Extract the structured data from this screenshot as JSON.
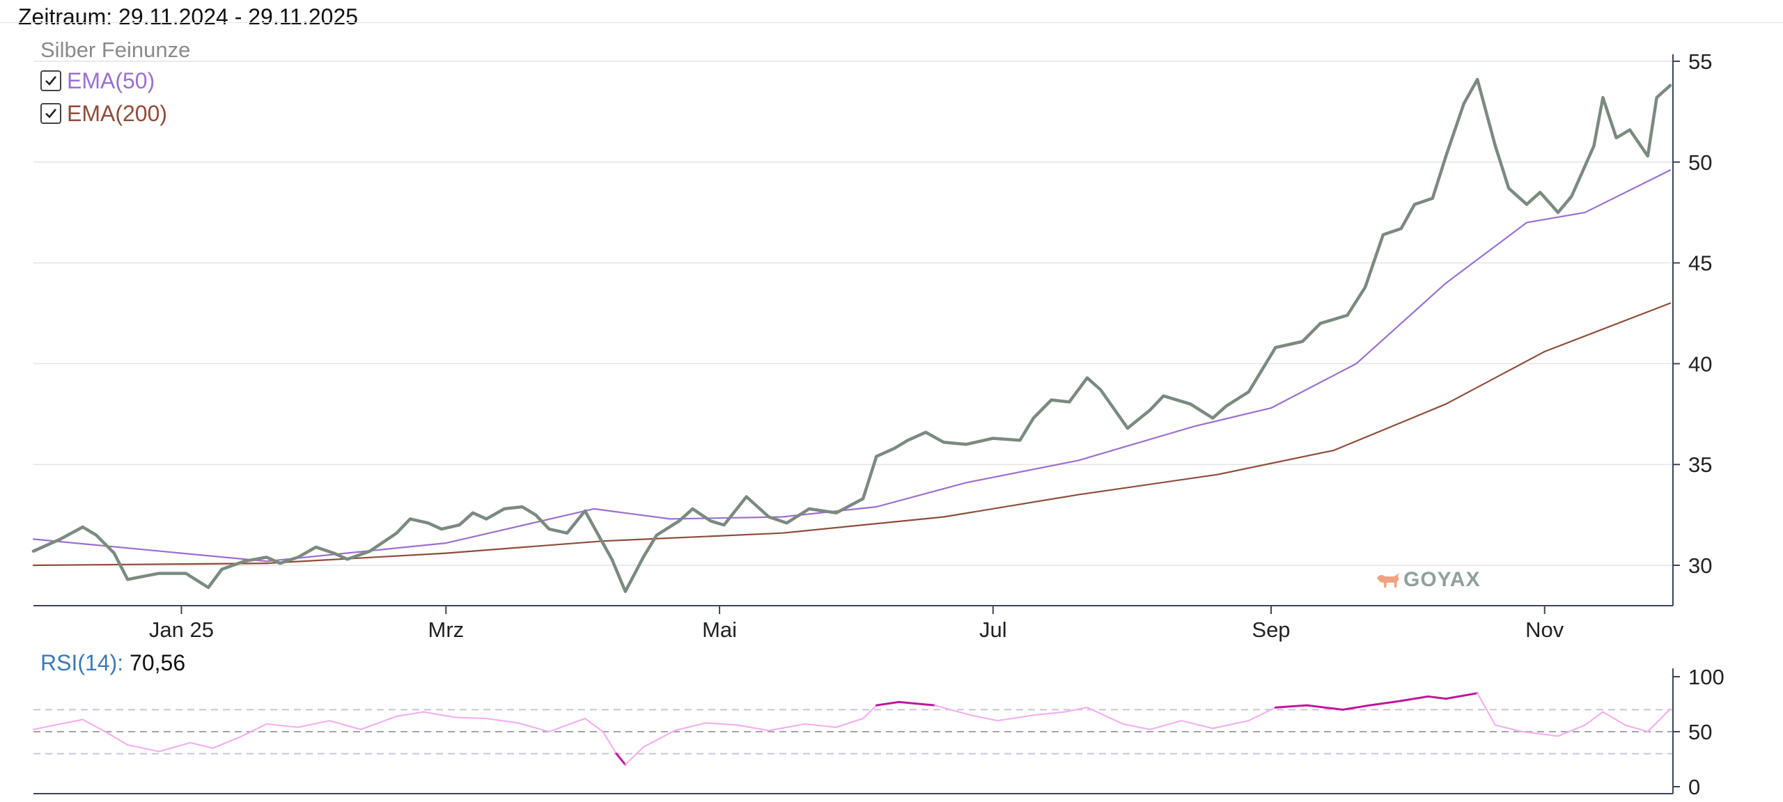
{
  "header": {
    "period_label": "Zeitraum: 29.11.2024 - 29.11.2025"
  },
  "legend": {
    "series_title": "Silber Feinunze",
    "items": [
      {
        "label": "EMA(50)",
        "checked": true,
        "color": "#9b6fcf"
      },
      {
        "label": "EMA(200)",
        "checked": true,
        "color": "#8f4c3a"
      }
    ]
  },
  "rsi_panel": {
    "name": "RSI(14):",
    "value": "70,56"
  },
  "watermark": {
    "text": "GOYAX",
    "icon": "bull-icon"
  },
  "colors": {
    "price": "#7b8a7e",
    "ema50": "#9b6fcf",
    "ema200": "#8f4c3a",
    "rsi_normal": "#f3b0ef",
    "rsi_extreme": "#c0169e",
    "grid": "#e4e4e4",
    "axis": "#3a4656"
  },
  "chart_data": [
    {
      "type": "line",
      "title": "Silber Feinunze",
      "xlabel": "",
      "ylabel": "",
      "x_ticks": [
        "Jan 25",
        "Mrz",
        "Mai",
        "Jul",
        "Sep",
        "Nov"
      ],
      "y_ticks": [
        "30",
        "35",
        "40",
        "45",
        "50",
        "55"
      ],
      "ylim": [
        28,
        55
      ],
      "xlim": [
        "2024-11-29",
        "2025-11-29"
      ],
      "grid": true,
      "legend_position": "top-left",
      "axis_side": "right",
      "series": [
        {
          "name": "Silber Feinunze",
          "points": [
            [
              "2024-11-29",
              30.7
            ],
            [
              "2024-12-05",
              31.3
            ],
            [
              "2024-12-10",
              31.9
            ],
            [
              "2024-12-13",
              31.5
            ],
            [
              "2024-12-17",
              30.6
            ],
            [
              "2024-12-20",
              29.3
            ],
            [
              "2024-12-27",
              29.6
            ],
            [
              "2025-01-02",
              29.6
            ],
            [
              "2025-01-07",
              28.9
            ],
            [
              "2025-01-10",
              29.8
            ],
            [
              "2025-01-15",
              30.2
            ],
            [
              "2025-01-20",
              30.4
            ],
            [
              "2025-01-23",
              30.1
            ],
            [
              "2025-01-27",
              30.4
            ],
            [
              "2025-01-31",
              30.9
            ],
            [
              "2025-02-04",
              30.6
            ],
            [
              "2025-02-07",
              30.3
            ],
            [
              "2025-02-12",
              30.7
            ],
            [
              "2025-02-18",
              31.6
            ],
            [
              "2025-02-21",
              32.3
            ],
            [
              "2025-02-25",
              32.1
            ],
            [
              "2025-02-28",
              31.8
            ],
            [
              "2025-03-04",
              32.0
            ],
            [
              "2025-03-07",
              32.6
            ],
            [
              "2025-03-10",
              32.3
            ],
            [
              "2025-03-14",
              32.8
            ],
            [
              "2025-03-18",
              32.9
            ],
            [
              "2025-03-21",
              32.5
            ],
            [
              "2025-03-24",
              31.8
            ],
            [
              "2025-03-28",
              31.6
            ],
            [
              "2025-04-01",
              32.7
            ],
            [
              "2025-04-04",
              31.5
            ],
            [
              "2025-04-07",
              30.3
            ],
            [
              "2025-04-10",
              28.7
            ],
            [
              "2025-04-14",
              30.4
            ],
            [
              "2025-04-17",
              31.5
            ],
            [
              "2025-04-22",
              32.2
            ],
            [
              "2025-04-25",
              32.8
            ],
            [
              "2025-04-29",
              32.2
            ],
            [
              "2025-05-02",
              32.0
            ],
            [
              "2025-05-07",
              33.4
            ],
            [
              "2025-05-12",
              32.4
            ],
            [
              "2025-05-16",
              32.1
            ],
            [
              "2025-05-21",
              32.8
            ],
            [
              "2025-05-27",
              32.6
            ],
            [
              "2025-06-02",
              33.3
            ],
            [
              "2025-06-05",
              35.4
            ],
            [
              "2025-06-09",
              35.8
            ],
            [
              "2025-06-12",
              36.2
            ],
            [
              "2025-06-16",
              36.6
            ],
            [
              "2025-06-20",
              36.1
            ],
            [
              "2025-06-25",
              36.0
            ],
            [
              "2025-07-01",
              36.3
            ],
            [
              "2025-07-07",
              36.2
            ],
            [
              "2025-07-10",
              37.3
            ],
            [
              "2025-07-14",
              38.2
            ],
            [
              "2025-07-18",
              38.1
            ],
            [
              "2025-07-22",
              39.3
            ],
            [
              "2025-07-25",
              38.7
            ],
            [
              "2025-07-31",
              36.8
            ],
            [
              "2025-08-05",
              37.7
            ],
            [
              "2025-08-08",
              38.4
            ],
            [
              "2025-08-14",
              38.0
            ],
            [
              "2025-08-19",
              37.3
            ],
            [
              "2025-08-22",
              37.9
            ],
            [
              "2025-08-27",
              38.6
            ],
            [
              "2025-09-02",
              40.8
            ],
            [
              "2025-09-08",
              41.1
            ],
            [
              "2025-09-12",
              42.0
            ],
            [
              "2025-09-18",
              42.4
            ],
            [
              "2025-09-22",
              43.8
            ],
            [
              "2025-09-26",
              46.4
            ],
            [
              "2025-09-30",
              46.7
            ],
            [
              "2025-10-03",
              47.9
            ],
            [
              "2025-10-07",
              48.2
            ],
            [
              "2025-10-10",
              50.3
            ],
            [
              "2025-10-14",
              52.9
            ],
            [
              "2025-10-17",
              54.1
            ],
            [
              "2025-10-21",
              50.8
            ],
            [
              "2025-10-24",
              48.7
            ],
            [
              "2025-10-28",
              47.9
            ],
            [
              "2025-10-31",
              48.5
            ],
            [
              "2025-11-04",
              47.5
            ],
            [
              "2025-11-07",
              48.3
            ],
            [
              "2025-11-12",
              50.8
            ],
            [
              "2025-11-14",
              53.2
            ],
            [
              "2025-11-17",
              51.2
            ],
            [
              "2025-11-20",
              51.6
            ],
            [
              "2025-11-24",
              50.3
            ],
            [
              "2025-11-26",
              53.2
            ],
            [
              "2025-11-29",
              53.8
            ]
          ]
        },
        {
          "name": "EMA(50)",
          "points": [
            [
              "2024-11-29",
              31.3
            ],
            [
              "2025-01-01",
              30.6
            ],
            [
              "2025-01-20",
              30.2
            ],
            [
              "2025-03-01",
              31.1
            ],
            [
              "2025-04-03",
              32.8
            ],
            [
              "2025-04-20",
              32.3
            ],
            [
              "2025-05-15",
              32.4
            ],
            [
              "2025-06-05",
              32.9
            ],
            [
              "2025-06-25",
              34.1
            ],
            [
              "2025-07-20",
              35.2
            ],
            [
              "2025-08-15",
              36.9
            ],
            [
              "2025-09-01",
              37.8
            ],
            [
              "2025-09-20",
              40.0
            ],
            [
              "2025-10-10",
              44.0
            ],
            [
              "2025-10-28",
              47.0
            ],
            [
              "2025-11-10",
              47.5
            ],
            [
              "2025-11-29",
              49.6
            ]
          ]
        },
        {
          "name": "EMA(200)",
          "points": [
            [
              "2024-11-29",
              30.0
            ],
            [
              "2025-01-20",
              30.1
            ],
            [
              "2025-03-01",
              30.6
            ],
            [
              "2025-04-05",
              31.2
            ],
            [
              "2025-05-15",
              31.6
            ],
            [
              "2025-06-20",
              32.4
            ],
            [
              "2025-07-20",
              33.5
            ],
            [
              "2025-08-20",
              34.5
            ],
            [
              "2025-09-15",
              35.7
            ],
            [
              "2025-10-10",
              38.0
            ],
            [
              "2025-11-01",
              40.6
            ],
            [
              "2025-11-29",
              43.0
            ]
          ]
        }
      ]
    },
    {
      "type": "line",
      "title": "RSI(14)",
      "xlabel": "",
      "ylabel": "",
      "y_ticks": [
        "100",
        "50",
        "0"
      ],
      "ylim": [
        0,
        100
      ],
      "xlim": [
        "2024-11-29",
        "2025-11-29"
      ],
      "reference_lines": [
        30,
        50,
        70
      ],
      "series": [
        {
          "name": "RSI(14)",
          "points": [
            [
              "2024-11-29",
              52
            ],
            [
              "2024-12-05",
              57
            ],
            [
              "2024-12-10",
              61
            ],
            [
              "2024-12-15",
              50
            ],
            [
              "2024-12-20",
              38
            ],
            [
              "2024-12-27",
              32
            ],
            [
              "2025-01-03",
              40
            ],
            [
              "2025-01-08",
              35
            ],
            [
              "2025-01-14",
              45
            ],
            [
              "2025-01-20",
              57
            ],
            [
              "2025-01-27",
              54
            ],
            [
              "2025-02-03",
              60
            ],
            [
              "2025-02-10",
              52
            ],
            [
              "2025-02-18",
              64
            ],
            [
              "2025-02-24",
              68
            ],
            [
              "2025-03-03",
              63
            ],
            [
              "2025-03-10",
              62
            ],
            [
              "2025-03-17",
              58
            ],
            [
              "2025-03-24",
              50
            ],
            [
              "2025-04-01",
              62
            ],
            [
              "2025-04-05",
              50
            ],
            [
              "2025-04-08",
              30
            ],
            [
              "2025-04-10",
              20
            ],
            [
              "2025-04-14",
              36
            ],
            [
              "2025-04-21",
              51
            ],
            [
              "2025-04-28",
              58
            ],
            [
              "2025-05-05",
              56
            ],
            [
              "2025-05-12",
              51
            ],
            [
              "2025-05-20",
              57
            ],
            [
              "2025-05-27",
              54
            ],
            [
              "2025-06-02",
              62
            ],
            [
              "2025-06-05",
              74
            ],
            [
              "2025-06-10",
              77
            ],
            [
              "2025-06-18",
              74
            ],
            [
              "2025-06-26",
              65
            ],
            [
              "2025-07-02",
              60
            ],
            [
              "2025-07-10",
              65
            ],
            [
              "2025-07-17",
              68
            ],
            [
              "2025-07-22",
              72
            ],
            [
              "2025-07-30",
              57
            ],
            [
              "2025-08-05",
              52
            ],
            [
              "2025-08-12",
              60
            ],
            [
              "2025-08-19",
              53
            ],
            [
              "2025-08-27",
              60
            ],
            [
              "2025-09-02",
              72
            ],
            [
              "2025-09-09",
              74
            ],
            [
              "2025-09-17",
              70
            ],
            [
              "2025-09-23",
              74
            ],
            [
              "2025-09-30",
              78
            ],
            [
              "2025-10-06",
              82
            ],
            [
              "2025-10-10",
              80
            ],
            [
              "2025-10-17",
              85
            ],
            [
              "2025-10-21",
              56
            ],
            [
              "2025-10-27",
              50
            ],
            [
              "2025-11-04",
              46
            ],
            [
              "2025-11-10",
              56
            ],
            [
              "2025-11-14",
              68
            ],
            [
              "2025-11-19",
              56
            ],
            [
              "2025-11-24",
              50
            ],
            [
              "2025-11-29",
              70.56
            ]
          ]
        }
      ]
    }
  ]
}
